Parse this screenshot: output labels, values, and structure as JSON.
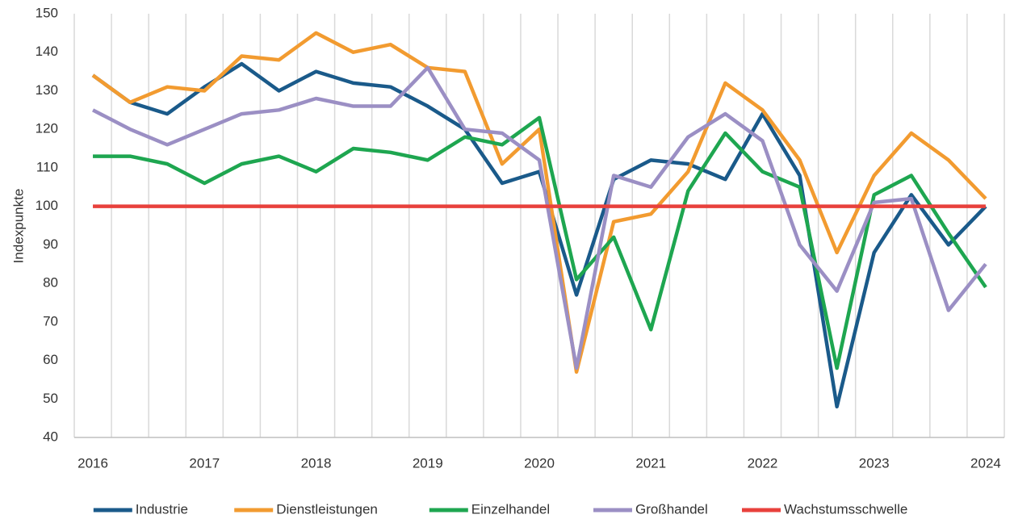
{
  "chart_data": {
    "type": "line",
    "y_label": "Indexpunkte",
    "categories": [
      "2016",
      null,
      null,
      "2017",
      null,
      null,
      "2018",
      null,
      null,
      "2019",
      null,
      null,
      "2020",
      null,
      null,
      "2021",
      null,
      null,
      "2022",
      null,
      null,
      "2023",
      null,
      null,
      "2024"
    ],
    "series": [
      {
        "name": "Industrie",
        "color": "#1a5a8a",
        "values": [
          134,
          127,
          124,
          131,
          137,
          130,
          135,
          132,
          131,
          126,
          120,
          106,
          109,
          77,
          107,
          112,
          111,
          107,
          124,
          108,
          48,
          88,
          103,
          90,
          100
        ]
      },
      {
        "name": "Dienstleistungen",
        "color": "#f29b30",
        "values": [
          134,
          127,
          131,
          130,
          139,
          138,
          145,
          140,
          142,
          136,
          135,
          111,
          120,
          57,
          96,
          98,
          109,
          132,
          125,
          112,
          88,
          108,
          119,
          112,
          102
        ]
      },
      {
        "name": "Einzelhandel",
        "color": "#1ea650",
        "values": [
          113,
          113,
          111,
          106,
          111,
          113,
          109,
          115,
          114,
          112,
          118,
          116,
          123,
          81,
          92,
          68,
          104,
          119,
          109,
          105,
          58,
          103,
          108,
          93,
          79
        ]
      },
      {
        "name": "Großhandel",
        "color": "#9b8fc4",
        "values": [
          125,
          120,
          116,
          120,
          124,
          125,
          128,
          126,
          126,
          136,
          120,
          119,
          112,
          58,
          108,
          105,
          118,
          124,
          117,
          90,
          78,
          101,
          102,
          73,
          85
        ]
      },
      {
        "name": "Wachstumsschwelle",
        "color": "#e8413c",
        "values": [
          100,
          100,
          100,
          100,
          100,
          100,
          100,
          100,
          100,
          100,
          100,
          100,
          100,
          100,
          100,
          100,
          100,
          100,
          100,
          100,
          100,
          100,
          100,
          100,
          100
        ]
      }
    ],
    "ylim": [
      40,
      150
    ],
    "yticks": [
      40,
      50,
      60,
      70,
      80,
      90,
      100,
      110,
      120,
      130,
      140,
      150
    ],
    "grid": "x",
    "legend": "bottom"
  }
}
